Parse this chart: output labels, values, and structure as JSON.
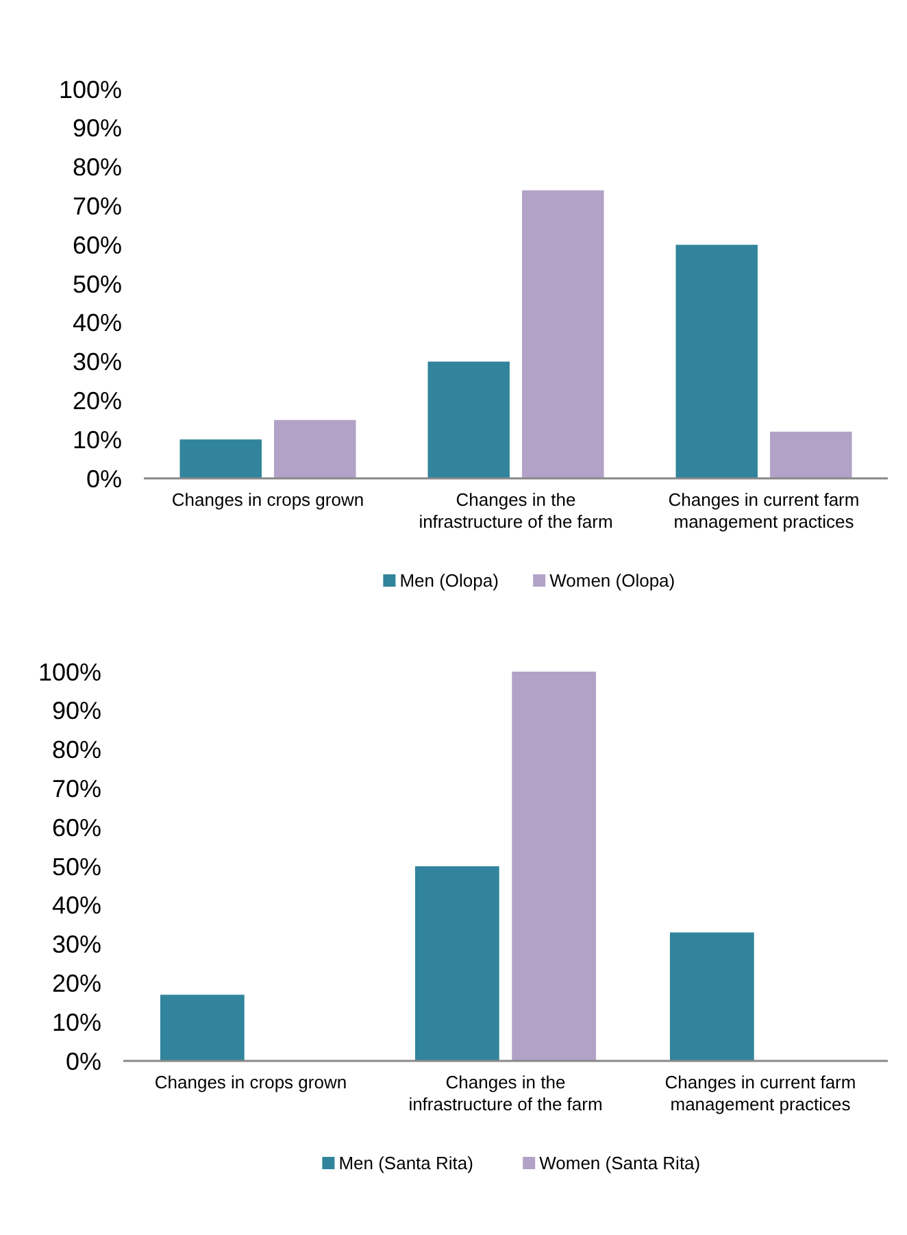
{
  "chart_data": [
    {
      "type": "bar",
      "categories": [
        "Changes in crops grown",
        "Changes in the infrastructure of the farm",
        "Changes in current farm management practices"
      ],
      "series": [
        {
          "name": "Men (Olopa)",
          "color": "#31849b",
          "values": [
            10,
            30,
            60
          ]
        },
        {
          "name": "Women (Olopa)",
          "color": "#b2a2c7",
          "values": [
            15,
            74,
            12
          ]
        }
      ],
      "ylim": [
        0,
        100
      ],
      "yticks": [
        {
          "value": 0,
          "label": "0%"
        },
        {
          "value": 10,
          "label": "10%"
        },
        {
          "value": 20,
          "label": "20%"
        },
        {
          "value": 30,
          "label": "30%"
        },
        {
          "value": 40,
          "label": "40%"
        },
        {
          "value": 50,
          "label": "50%"
        },
        {
          "value": 60,
          "label": "60%"
        },
        {
          "value": 70,
          "label": "70%"
        },
        {
          "value": 80,
          "label": "80%"
        },
        {
          "value": 90,
          "label": "90%"
        },
        {
          "value": 100,
          "label": "100%"
        }
      ],
      "grid": false,
      "legend": "bottom"
    },
    {
      "type": "bar",
      "categories": [
        "Changes in crops grown",
        "Changes in the infrastructure of the farm",
        "Changes in current farm management practices"
      ],
      "series": [
        {
          "name": "Men (Santa Rita)",
          "color": "#31849b",
          "values": [
            17,
            50,
            33
          ]
        },
        {
          "name": "Women (Santa Rita)",
          "color": "#b2a2c7",
          "values": [
            0,
            100,
            0
          ]
        }
      ],
      "ylim": [
        0,
        100
      ],
      "yticks": [
        {
          "value": 0,
          "label": "0%"
        },
        {
          "value": 10,
          "label": "10%"
        },
        {
          "value": 20,
          "label": "20%"
        },
        {
          "value": 30,
          "label": "30%"
        },
        {
          "value": 40,
          "label": "40%"
        },
        {
          "value": 50,
          "label": "50%"
        },
        {
          "value": 60,
          "label": "60%"
        },
        {
          "value": 70,
          "label": "70%"
        },
        {
          "value": 80,
          "label": "80%"
        },
        {
          "value": 90,
          "label": "90%"
        },
        {
          "value": 100,
          "label": "100%"
        }
      ],
      "grid": false,
      "legend": "bottom"
    }
  ]
}
